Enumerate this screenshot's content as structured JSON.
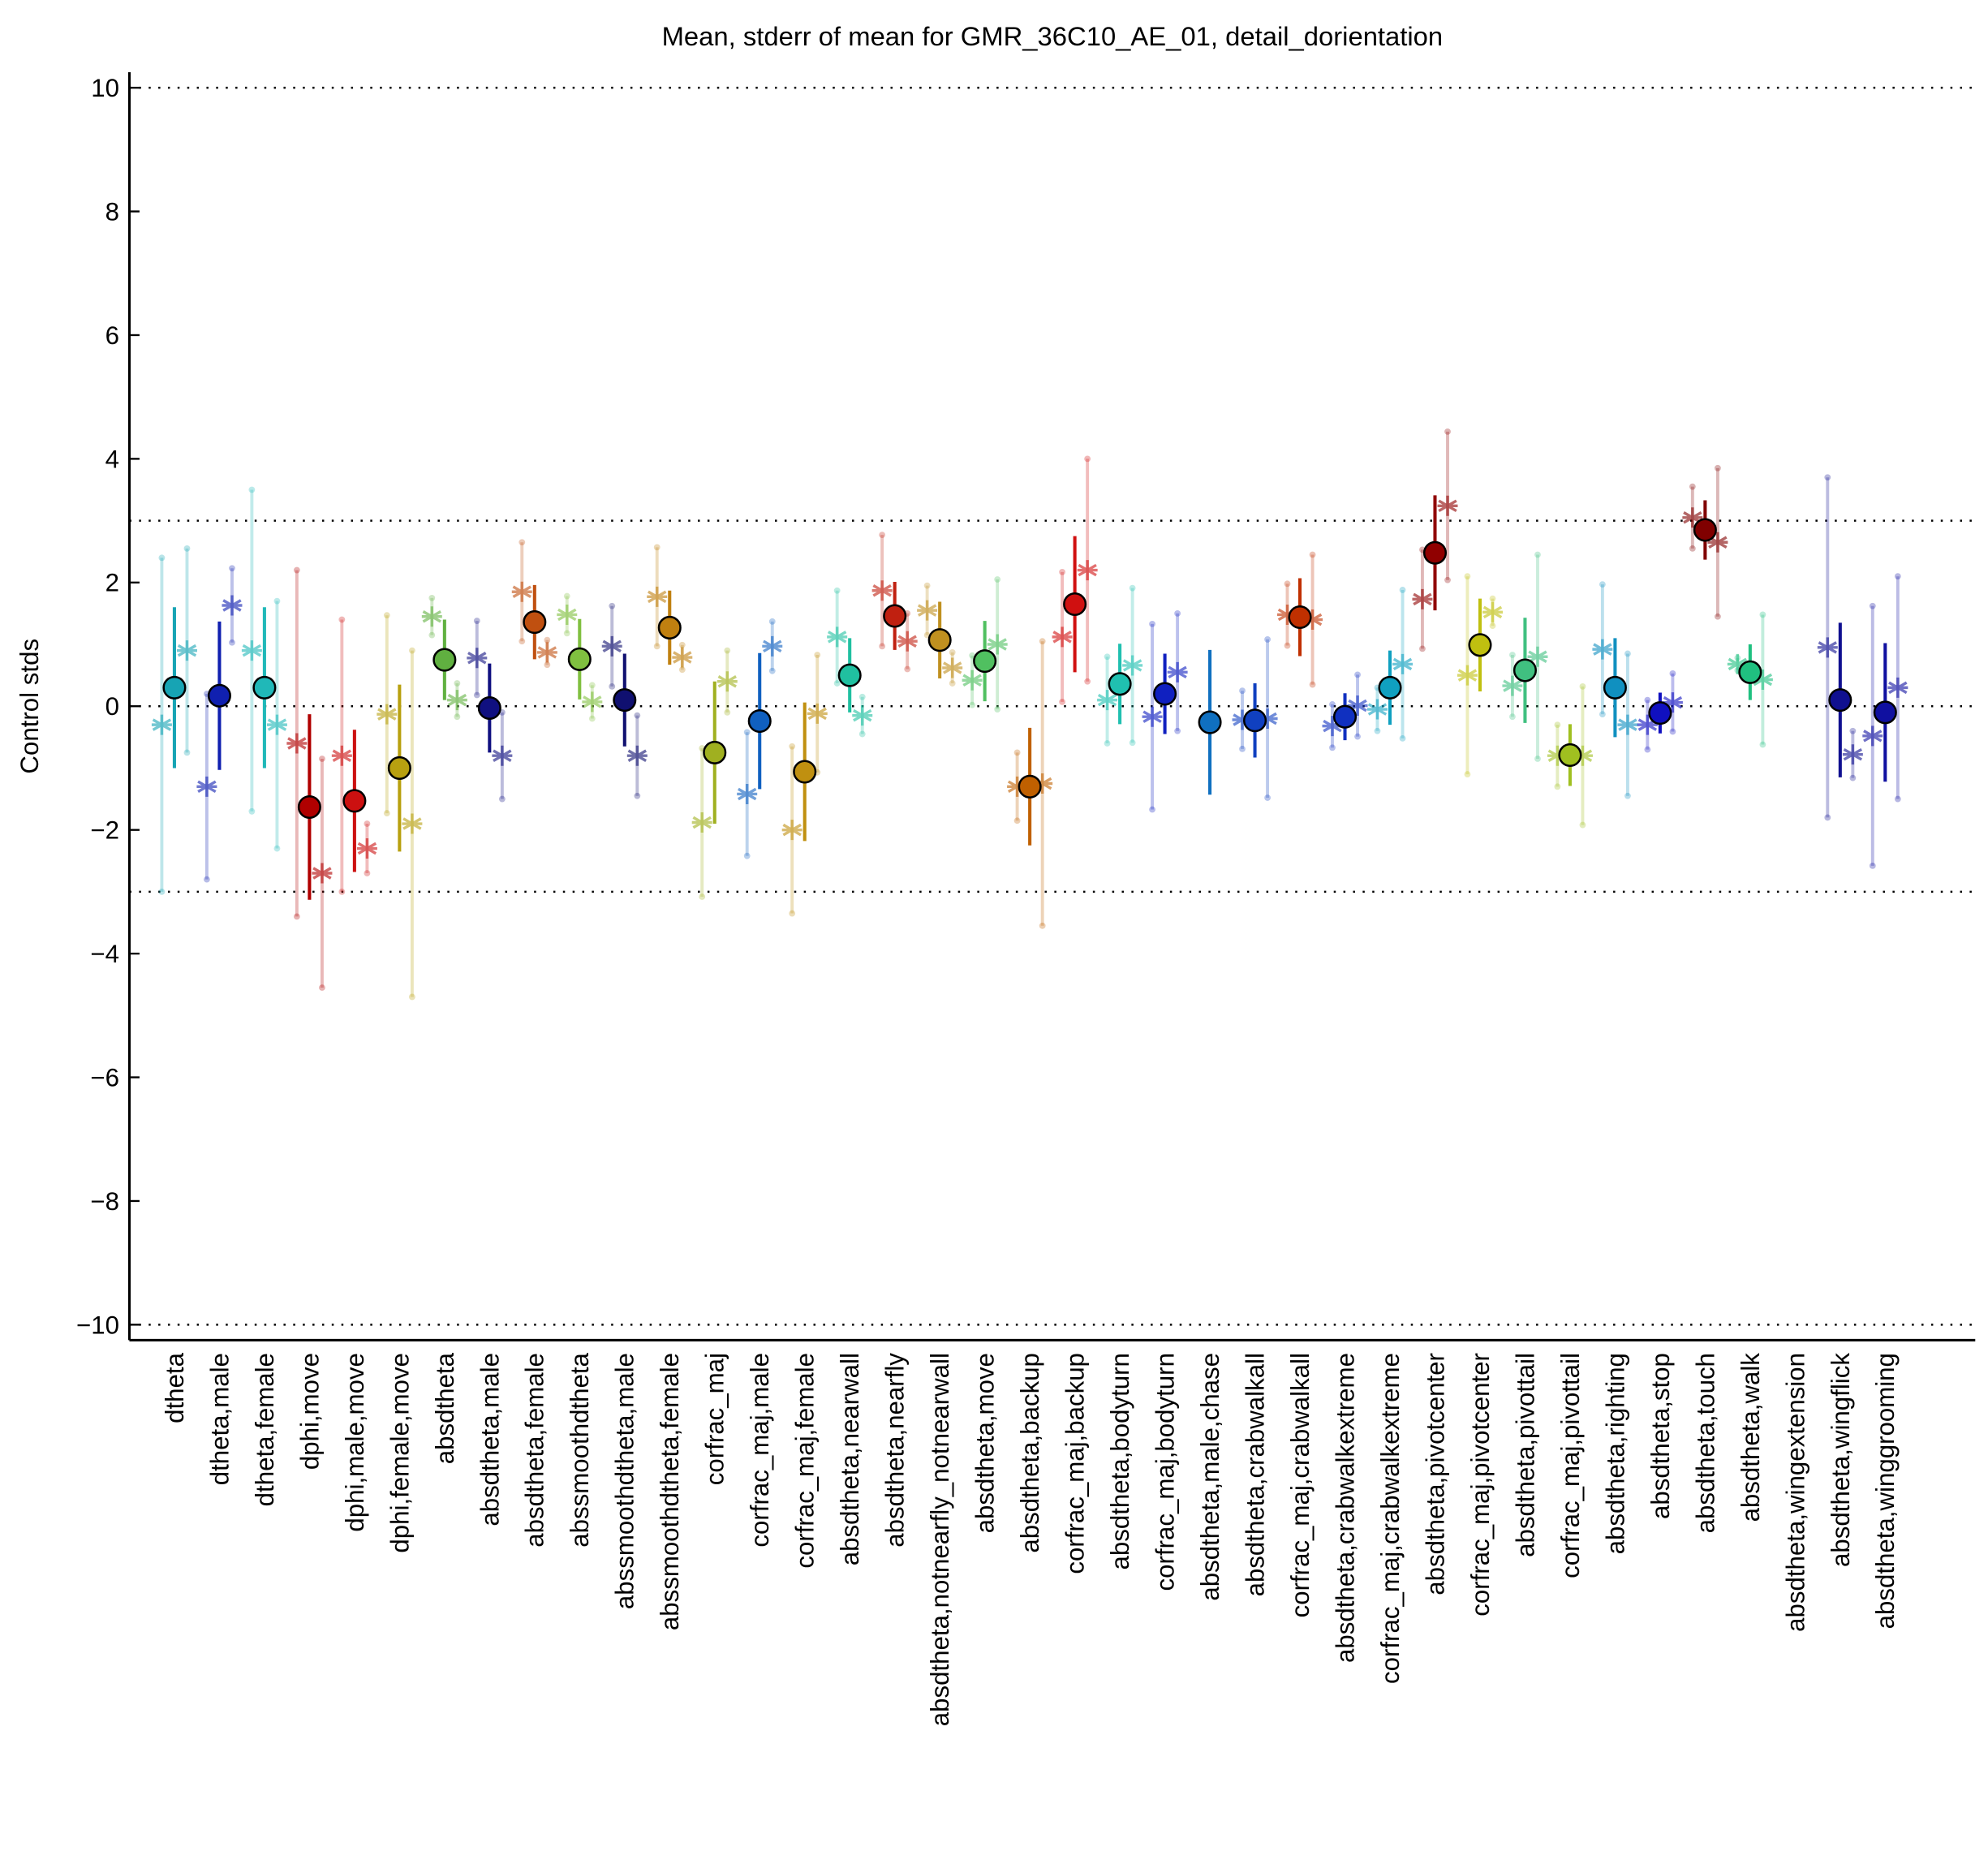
{
  "chart_data": {
    "type": "errorbar",
    "title": "Mean, stderr of mean for GMR_36C10_AE_01, detail_dorientation",
    "ylabel": "Control stds",
    "xlim": [
      0,
      41
    ],
    "ylim": [
      -10.25,
      10.25
    ],
    "yticks": [
      {
        "value": 10,
        "label": "10"
      },
      {
        "value": 8,
        "label": "8"
      },
      {
        "value": 6,
        "label": "6"
      },
      {
        "value": 4,
        "label": "4"
      },
      {
        "value": 2,
        "label": "2"
      },
      {
        "value": 0,
        "label": "0"
      },
      {
        "value": -2,
        "label": "−2"
      },
      {
        "value": -4,
        "label": "−4"
      },
      {
        "value": -6,
        "label": "−6"
      },
      {
        "value": -8,
        "label": "−8"
      },
      {
        "value": -10,
        "label": "−10"
      }
    ],
    "hlines": [
      10,
      3,
      0,
      -3,
      -10
    ],
    "categories": [
      "dtheta",
      "dtheta,male",
      "dtheta,female",
      "dphi,move",
      "dphi,male,move",
      "dphi,female,move",
      "absdtheta",
      "absdtheta,male",
      "absdtheta,female",
      "abssmoothdtheta",
      "abssmoothdtheta,male",
      "abssmoothdtheta,female",
      "corfrac_maj",
      "corfrac_maj,male",
      "corfrac_maj,female",
      "absdtheta,nearwall",
      "absdtheta,nearfly",
      "absdtheta,notnearfly_notnearwall",
      "absdtheta,move",
      "absdtheta,backup",
      "corfrac_maj,backup",
      "absdtheta,bodyturn",
      "corfrac_maj,bodyturn",
      "absdtheta,male,chase",
      "absdtheta,crabwalkall",
      "corfrac_maj,crabwalkall",
      "absdtheta,crabwalkextreme",
      "corfrac_maj,crabwalkextreme",
      "absdtheta,pivotcenter",
      "corfrac_maj,pivotcenter",
      "absdtheta,pivottail",
      "corfrac_maj,pivottail",
      "absdtheta,righting",
      "absdtheta,stop",
      "absdtheta,touch",
      "absdtheta,walk",
      "absdtheta,wingextension",
      "absdtheta,wingflick",
      "absdtheta,winggrooming"
    ],
    "colors": [
      "#17a4b4",
      "#1020b0",
      "#20b8b8",
      "#b00000",
      "#cc1010",
      "#b8a010",
      "#60b040",
      "#101080",
      "#c05010",
      "#80c040",
      "#101070",
      "#c08010",
      "#a0b020",
      "#1060c0",
      "#c09010",
      "#20c0a0",
      "#c02010",
      "#c09020",
      "#50c060",
      "#c06000",
      "#d01010",
      "#20c0b0",
      "#1020c0",
      "#1070c0",
      "#1040c0",
      "#c03000",
      "#1030c0",
      "#10a0c0",
      "#900000",
      "#c0c010",
      "#40c080",
      "#a0c020",
      "#1090c0",
      "#1010c0",
      "#800000",
      "#20c080",
      "#a0a0a0",
      "#101090",
      "#1010a0"
    ],
    "values": [
      0.3,
      0.17,
      0.3,
      -1.63,
      -1.53,
      -1.0,
      0.75,
      -0.03,
      1.36,
      0.76,
      0.1,
      1.27,
      -0.75,
      -0.24,
      -1.06,
      0.5,
      1.46,
      1.07,
      0.73,
      -1.3,
      1.65,
      0.36,
      0.2,
      -0.26,
      -0.23,
      1.44,
      -0.17,
      0.3,
      2.48,
      0.99,
      0.58,
      -0.79,
      0.3,
      -0.11,
      2.85,
      0.55,
      null,
      0.1,
      -0.1
    ],
    "errors": [
      1.3,
      1.2,
      1.3,
      1.5,
      1.15,
      1.35,
      0.65,
      0.72,
      0.6,
      0.65,
      0.75,
      0.6,
      1.15,
      1.1,
      1.12,
      0.6,
      0.55,
      0.62,
      0.65,
      0.95,
      1.1,
      0.65,
      0.65,
      1.17,
      0.6,
      0.63,
      0.38,
      0.6,
      0.93,
      0.75,
      0.85,
      0.5,
      0.8,
      0.33,
      0.48,
      0.45,
      null,
      1.25,
      1.12
    ],
    "male_values": [
      -0.3,
      -1.3,
      0.9,
      -0.6,
      -0.8,
      -0.13,
      1.45,
      0.78,
      1.85,
      1.48,
      0.97,
      1.77,
      -1.88,
      -1.42,
      -2.0,
      1.12,
      1.87,
      1.55,
      0.42,
      -1.3,
      1.12,
      0.1,
      -0.17,
      null,
      -0.22,
      1.48,
      -0.32,
      -0.05,
      1.73,
      0.5,
      0.33,
      -0.8,
      0.92,
      -0.3,
      3.05,
      0.68,
      null,
      0.95,
      -0.48
    ],
    "male_errors": [
      2.7,
      1.5,
      2.6,
      2.8,
      2.2,
      1.6,
      0.3,
      0.6,
      0.8,
      0.3,
      0.65,
      0.8,
      1.2,
      1.0,
      1.35,
      0.75,
      0.9,
      0.4,
      0.4,
      0.55,
      1.05,
      0.7,
      1.5,
      null,
      0.47,
      0.5,
      0.35,
      0.35,
      0.8,
      1.6,
      0.5,
      0.5,
      1.05,
      0.4,
      0.5,
      0.1,
      null,
      2.75,
      2.1
    ],
    "female_values": [
      0.9,
      1.63,
      -0.3,
      -2.7,
      -2.3,
      -1.9,
      0.1,
      -0.8,
      0.87,
      0.07,
      -0.8,
      0.79,
      0.4,
      0.97,
      -0.12,
      -0.15,
      1.05,
      0.62,
      1.0,
      -1.25,
      2.2,
      0.66,
      0.55,
      null,
      -0.2,
      1.4,
      0.01,
      0.68,
      3.24,
      1.52,
      0.8,
      -0.8,
      -0.3,
      0.06,
      2.65,
      0.43,
      null,
      -0.78,
      0.3
    ],
    "female_errors": [
      1.65,
      0.6,
      2.0,
      1.85,
      0.4,
      2.8,
      0.27,
      0.7,
      0.2,
      0.27,
      0.65,
      0.2,
      0.5,
      0.4,
      0.95,
      0.3,
      0.45,
      0.25,
      1.05,
      2.3,
      1.8,
      1.25,
      0.95,
      null,
      1.28,
      1.05,
      0.5,
      1.2,
      1.2,
      0.22,
      1.65,
      1.12,
      1.15,
      0.47,
      1.2,
      1.05,
      null,
      0.38,
      1.8
    ]
  }
}
